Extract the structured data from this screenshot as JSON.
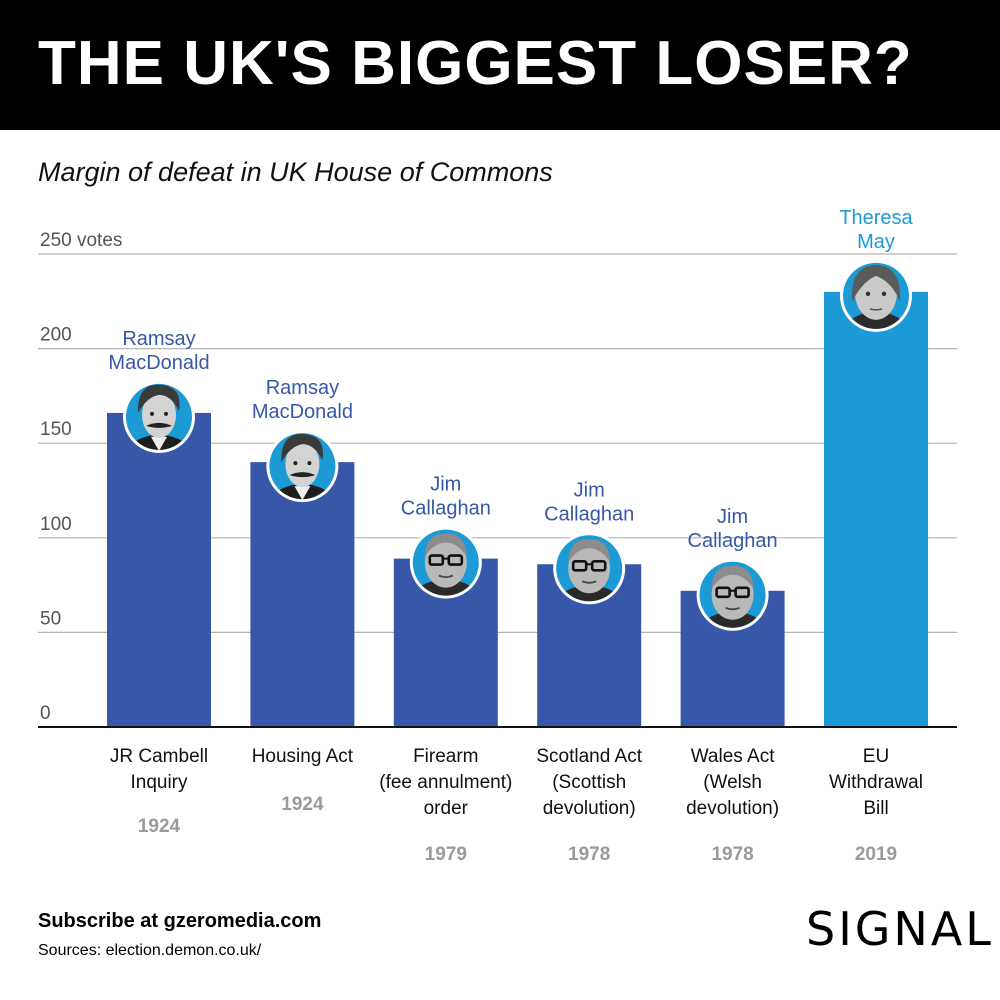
{
  "header": {
    "title": "THE UK'S BIGGEST LOSER?"
  },
  "chart_data": {
    "type": "bar",
    "title": "THE UK'S BIGGEST LOSER?",
    "subtitle": "Margin of defeat in UK House of Commons",
    "ylim": [
      0,
      250
    ],
    "yticks": [
      {
        "value": 0,
        "label": "0"
      },
      {
        "value": 50,
        "label": "50"
      },
      {
        "value": 100,
        "label": "100"
      },
      {
        "value": 150,
        "label": "150"
      },
      {
        "value": 200,
        "label": "200"
      },
      {
        "value": 250,
        "label": "250 votes"
      }
    ],
    "grid": true,
    "categories": [
      {
        "label_lines": [
          "JR Cambell",
          "Inquiry"
        ],
        "year": "1924"
      },
      {
        "label_lines": [
          "Housing Act"
        ],
        "year": "1924"
      },
      {
        "label_lines": [
          "Firearm",
          "(fee annulment)",
          "order"
        ],
        "year": "1979"
      },
      {
        "label_lines": [
          "Scotland Act",
          "(Scottish",
          "devolution)"
        ],
        "year": "1978"
      },
      {
        "label_lines": [
          "Wales Act",
          "(Welsh",
          "devolution)"
        ],
        "year": "1978"
      },
      {
        "label_lines": [
          "EU",
          "Withdrawal",
          "Bill"
        ],
        "year": "2019"
      }
    ],
    "values": [
      166,
      140,
      89,
      86,
      72,
      230
    ],
    "pm_labels": [
      [
        "Ramsay",
        "MacDonald"
      ],
      [
        "Ramsay",
        "MacDonald"
      ],
      [
        "Jim",
        "Callaghan"
      ],
      [
        "Jim",
        "Callaghan"
      ],
      [
        "Jim",
        "Callaghan"
      ],
      [
        "Theresa",
        "May"
      ]
    ],
    "portrait_icons": [
      "macdonald-portrait-icon",
      "macdonald-portrait-icon",
      "callaghan-portrait-icon",
      "callaghan-portrait-icon",
      "callaghan-portrait-icon",
      "may-portrait-icon"
    ],
    "highlight_index": 5
  },
  "colors": {
    "bar": "#3758a8",
    "highlight": "#1c9ad6",
    "pm_label": "#3758a8",
    "year": "#9a9a9a",
    "grid": "#b5b5b5",
    "axis_text": "#555555"
  },
  "footer": {
    "subscribe": "Subscribe at gzeromedia.com",
    "sources": "Sources: election.demon.co.uk/",
    "logo": "SIGNAL"
  }
}
